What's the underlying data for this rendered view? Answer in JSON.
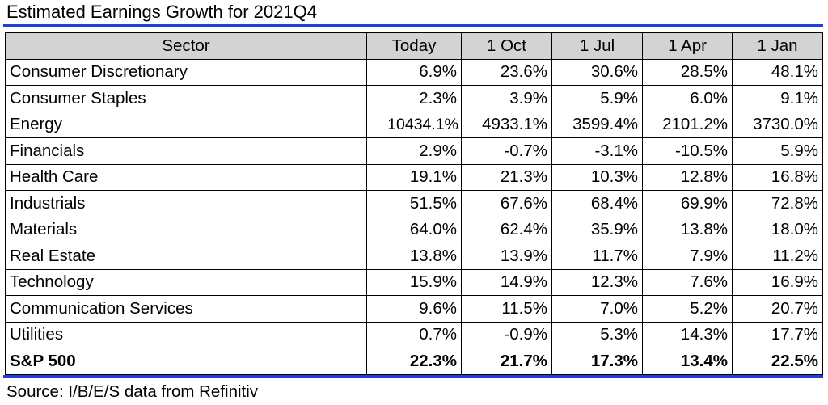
{
  "chart_data": {
    "type": "table",
    "title": "Estimated Earnings Growth for 2021Q4",
    "columns": [
      "Sector",
      "Today",
      "1 Oct",
      "1 Jul",
      "1 Apr",
      "1 Jan"
    ],
    "rows": [
      {
        "sector": "Consumer Discretionary",
        "values": [
          "6.9%",
          "23.6%",
          "30.6%",
          "28.5%",
          "48.1%"
        ]
      },
      {
        "sector": "Consumer Staples",
        "values": [
          "2.3%",
          "3.9%",
          "5.9%",
          "6.0%",
          "9.1%"
        ]
      },
      {
        "sector": "Energy",
        "values": [
          "10434.1%",
          "4933.1%",
          "3599.4%",
          "2101.2%",
          "3730.0%"
        ]
      },
      {
        "sector": "Financials",
        "values": [
          "2.9%",
          "-0.7%",
          "-3.1%",
          "-10.5%",
          "5.9%"
        ]
      },
      {
        "sector": "Health Care",
        "values": [
          "19.1%",
          "21.3%",
          "10.3%",
          "12.8%",
          "16.8%"
        ]
      },
      {
        "sector": "Industrials",
        "values": [
          "51.5%",
          "67.6%",
          "68.4%",
          "69.9%",
          "72.8%"
        ]
      },
      {
        "sector": "Materials",
        "values": [
          "64.0%",
          "62.4%",
          "35.9%",
          "13.8%",
          "18.0%"
        ]
      },
      {
        "sector": "Real Estate",
        "values": [
          "13.8%",
          "13.9%",
          "11.7%",
          "7.9%",
          "11.2%"
        ]
      },
      {
        "sector": "Technology",
        "values": [
          "15.9%",
          "14.9%",
          "12.3%",
          "7.6%",
          "16.9%"
        ]
      },
      {
        "sector": "Communication Services",
        "values": [
          "9.6%",
          "11.5%",
          "7.0%",
          "5.2%",
          "20.7%"
        ]
      },
      {
        "sector": "Utilities",
        "values": [
          "0.7%",
          "-0.9%",
          "5.3%",
          "14.3%",
          "17.7%"
        ]
      }
    ],
    "total": {
      "sector": "S&P 500",
      "values": [
        "22.3%",
        "21.7%",
        "17.3%",
        "13.4%",
        "22.5%"
      ]
    },
    "source": "Source: I/B/E/S data from Refinitiv",
    "colors": {
      "rule": "#1f3fdc",
      "header_bg": "#d3d3d3"
    }
  }
}
